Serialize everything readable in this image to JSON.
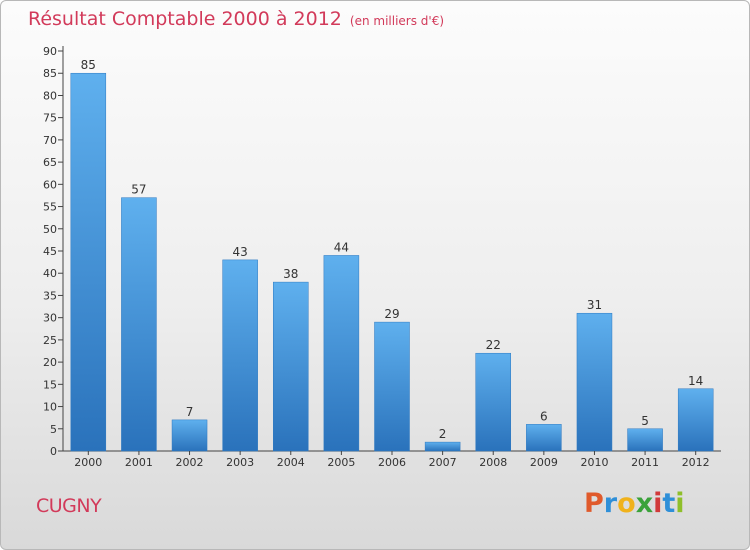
{
  "chart_data": {
    "type": "bar",
    "title": "Résultat Comptable 2000 à 2012",
    "subtitle": "(en milliers d'€)",
    "categories": [
      "2000",
      "2001",
      "2002",
      "2003",
      "2004",
      "2005",
      "2006",
      "2007",
      "2008",
      "2009",
      "2010",
      "2011",
      "2012"
    ],
    "values": [
      85,
      57,
      7,
      43,
      38,
      44,
      29,
      2,
      22,
      6,
      31,
      5,
      14
    ],
    "ylim": [
      0,
      90
    ],
    "yticks": [
      0,
      5,
      10,
      15,
      20,
      25,
      30,
      35,
      40,
      45,
      50,
      55,
      60,
      65,
      70,
      75,
      80,
      85,
      90
    ],
    "grid": false,
    "bar_color": "#3f8fd6",
    "bar_color_light": "#5fb0ee",
    "bar_color_dark": "#2a72bb"
  },
  "commune": "CUGNY",
  "brand": {
    "letters": [
      "P",
      "r",
      "o",
      "x",
      "i",
      "t",
      "i"
    ],
    "colors": [
      "#e05a2b",
      "#2e8fd8",
      "#f0b21c",
      "#3aa23a",
      "#d13a3a",
      "#2e8fd8",
      "#8fbf2a"
    ]
  },
  "colors": {
    "title": "#d23a5a",
    "axis_text": "#333333"
  }
}
